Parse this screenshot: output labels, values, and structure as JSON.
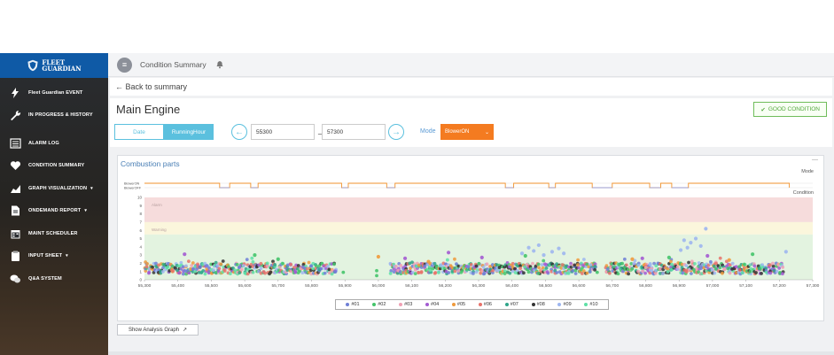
{
  "brand": {
    "logo_text_1": "FLEET",
    "logo_text_2": "GUARDIAN"
  },
  "sidebar": {
    "items": [
      {
        "label": "Fleet Guardian EVENT",
        "icon": "bolt-icon",
        "caret": ""
      },
      {
        "label": "IN PROGRESS & HISTORY",
        "icon": "wrench-icon",
        "caret": ""
      },
      {
        "label": "ALARM LOG",
        "icon": "list-icon",
        "caret": ""
      },
      {
        "label": "CONDITION SUMMARY",
        "icon": "heartbeat-icon",
        "caret": ""
      },
      {
        "label": "GRAPH VISUALIZATION",
        "icon": "area-chart-icon",
        "caret": "▾"
      },
      {
        "label": "ONDEMAND REPORT",
        "icon": "document-icon",
        "caret": "▾"
      },
      {
        "label": "MAINT SCHEDULER",
        "icon": "calendar-icon",
        "caret": ""
      },
      {
        "label": "INPUT SHEET",
        "icon": "clipboard-icon",
        "caret": "▾"
      },
      {
        "label": "Q&A SYSTEM",
        "icon": "chat-icon",
        "caret": ""
      }
    ]
  },
  "topbar": {
    "title": "Condition Summary",
    "menu_glyph": "≡"
  },
  "back": {
    "label": "← Back to summary"
  },
  "page": {
    "title": "Main Engine",
    "condition_label": "GOOD CONDITION",
    "condition_glyph": "✔"
  },
  "controls": {
    "tab_date": "Date",
    "tab_running": "RunningHour",
    "from_value": "55300",
    "to_value": "57300",
    "dash": "_",
    "prev_glyph": "←",
    "next_glyph": "→",
    "mode_label": "Mode",
    "mode_value": "BlowerON",
    "mode_caret": "⌄"
  },
  "chart_panel": {
    "title": "Combustion parts",
    "minimize_glyph": "—"
  },
  "analysis_button": {
    "label": "Show Analysis Graph",
    "glyph": "↗"
  },
  "colors": {
    "accent": "#5bc0de",
    "mode_orange": "#f47b20",
    "alarm_band": "#f6dcdc",
    "warning_band": "#fbf6dc",
    "normal_band": "#e3f3e0",
    "mode_on_line": "#f0922b",
    "mode_off_line": "#9a9acc"
  },
  "chart_data": {
    "type": "scatter",
    "title": "",
    "mode_track": {
      "label": "Mode",
      "states": [
        "BlowerON",
        "BlowerOFF"
      ],
      "on_ranges": [
        [
          55300,
          55525
        ],
        [
          55555,
          55618
        ],
        [
          55640,
          55890
        ],
        [
          55910,
          56025
        ],
        [
          56050,
          56380
        ],
        [
          56405,
          56510
        ],
        [
          56530,
          56640
        ],
        [
          56700,
          56812
        ],
        [
          56845,
          56878
        ],
        [
          56928,
          57230
        ]
      ]
    },
    "condition_panel": {
      "label": "Condition",
      "bands": [
        {
          "name": "Alarm",
          "from": 7,
          "to": 10
        },
        {
          "name": "Warning",
          "from": 5.5,
          "to": 7
        },
        {
          "name": "",
          "from": 0,
          "to": 5.5
        }
      ]
    },
    "xlim": [
      55300,
      57300
    ],
    "ylim": [
      0,
      10
    ],
    "x_ticks": [
      "55,300",
      "55,400",
      "55,500",
      "55,600",
      "55,700",
      "55,800",
      "55,900",
      "56,000",
      "56,100",
      "56,200",
      "56,300",
      "56,400",
      "56,500",
      "56,600",
      "56,700",
      "56,800",
      "56,900",
      "57,000",
      "57,100",
      "57,200",
      "57,300"
    ],
    "y_ticks": [
      "0",
      "1",
      "2",
      "3",
      "4",
      "5",
      "6",
      "7",
      "8",
      "9",
      "10"
    ],
    "series": [
      {
        "name": "#01",
        "color": "#6f7fd6"
      },
      {
        "name": "#02",
        "color": "#44c46a"
      },
      {
        "name": "#03",
        "color": "#f0a0b4"
      },
      {
        "name": "#04",
        "color": "#a35bd1"
      },
      {
        "name": "#05",
        "color": "#ef9a3c"
      },
      {
        "name": "#06",
        "color": "#e8726a"
      },
      {
        "name": "#07",
        "color": "#2fa58a"
      },
      {
        "name": "#08",
        "color": "#333333"
      },
      {
        "name": "#09",
        "color": "#9db6f0"
      },
      {
        "name": "#10",
        "color": "#5ee0a6"
      }
    ],
    "data_ranges": [
      [
        55300,
        55870
      ],
      [
        56035,
        56650
      ],
      [
        56680,
        57210
      ]
    ],
    "highlights": [
      {
        "series": "#09",
        "points": [
          [
            56430,
            3.2
          ],
          [
            56450,
            3.9
          ],
          [
            56465,
            3.5
          ],
          [
            56480,
            4.2
          ],
          [
            56495,
            3.0
          ],
          [
            56520,
            3.4
          ],
          [
            56540,
            3.8
          ],
          [
            56555,
            3.2
          ],
          [
            56905,
            3.6
          ],
          [
            56915,
            4.8
          ],
          [
            56925,
            3.9
          ],
          [
            56935,
            4.5
          ],
          [
            56950,
            5.0
          ],
          [
            56965,
            4.1
          ],
          [
            56980,
            6.2
          ],
          [
            57220,
            3.4
          ]
        ]
      },
      {
        "series": "#05",
        "points": [
          [
            56000,
            2.8
          ],
          [
            56150,
            2.2
          ],
          [
            56760,
            2.5
          ],
          [
            57050,
            2.4
          ]
        ]
      },
      {
        "series": "#04",
        "points": [
          [
            55420,
            3.1
          ],
          [
            56080,
            2.6
          ],
          [
            56210,
            3.3
          ],
          [
            56310,
            2.7
          ],
          [
            56790,
            2.6
          ],
          [
            56985,
            2.9
          ]
        ]
      },
      {
        "series": "#02",
        "points": [
          [
            55630,
            3.0
          ],
          [
            55700,
            2.5
          ],
          [
            56440,
            2.9
          ],
          [
            56870,
            2.7
          ],
          [
            57120,
            3.1
          ]
        ]
      }
    ]
  }
}
